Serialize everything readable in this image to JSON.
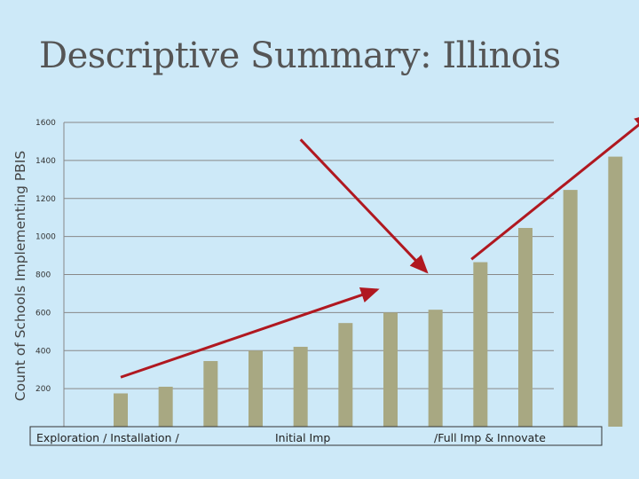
{
  "slide": {
    "title": "Descriptive Summary: Illinois"
  },
  "chart_data": {
    "type": "bar",
    "ylabel": "Count of Schools Implementing PBIS",
    "xlabel": "",
    "ylim": [
      0,
      1600
    ],
    "yticks": [
      200,
      400,
      600,
      800,
      1000,
      1200,
      1400,
      1600
    ],
    "grid": true,
    "series": [
      {
        "values": [
          175,
          210,
          345,
          400,
          420,
          545,
          600,
          615,
          865,
          1045,
          1245,
          1420
        ]
      }
    ],
    "phase_labels": [
      "Exploration / Installation  /",
      "Initial Imp",
      "/Full Imp & Innovate"
    ],
    "colors": {
      "bar": "#a8a882",
      "arrow": "#b01820",
      "grid": "#888888",
      "background": "#cde9f8"
    },
    "annotations": [
      {
        "type": "arrow",
        "description": "upward trend arrow",
        "from": [
          1,
          260
        ],
        "to": [
          6.7,
          720
        ]
      },
      {
        "type": "arrow",
        "description": "downward arrow",
        "from": [
          5,
          1510
        ],
        "to": [
          7.8,
          815
        ]
      },
      {
        "type": "arrow",
        "description": "upward trend arrow",
        "from": [
          8.8,
          880
        ],
        "to": [
          12.8,
          1640
        ]
      }
    ]
  }
}
